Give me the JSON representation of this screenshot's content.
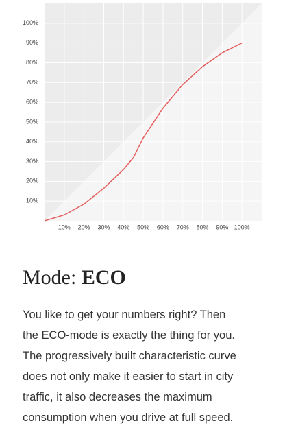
{
  "chart_data": {
    "type": "line",
    "x": [
      0,
      10,
      20,
      30,
      40,
      45,
      50,
      60,
      70,
      80,
      90,
      100
    ],
    "series": [
      {
        "color": "#e35d5d",
        "values": [
          0,
          3,
          8.5,
          16.5,
          26,
          32,
          42,
          57,
          69,
          78,
          85,
          90
        ]
      }
    ],
    "xlim": [
      0,
      110
    ],
    "ylim": [
      0,
      110
    ],
    "xticks": [
      {
        "value": 10,
        "label": "10%"
      },
      {
        "value": 20,
        "label": "20%"
      },
      {
        "value": 30,
        "label": "30%"
      },
      {
        "value": 40,
        "label": "40%"
      },
      {
        "value": 50,
        "label": "50%"
      },
      {
        "value": 60,
        "label": "60%"
      },
      {
        "value": 70,
        "label": "70%"
      },
      {
        "value": 80,
        "label": "80%"
      },
      {
        "value": 90,
        "label": "90%"
      },
      {
        "value": 100,
        "label": "100%"
      }
    ],
    "yticks": [
      {
        "value": 10,
        "label": "10%"
      },
      {
        "value": 20,
        "label": "20%"
      },
      {
        "value": 30,
        "label": "30%"
      },
      {
        "value": 40,
        "label": "40%"
      },
      {
        "value": 50,
        "label": "50%"
      },
      {
        "value": 60,
        "label": "60%"
      },
      {
        "value": 70,
        "label": "70%"
      },
      {
        "value": 80,
        "label": "80%"
      },
      {
        "value": 90,
        "label": "90%"
      },
      {
        "value": 100,
        "label": "100%"
      }
    ],
    "grid": true
  },
  "article": {
    "heading": {
      "prefix": "Mode:",
      "mode": "ECO"
    },
    "lines": [
      "You like to get your numbers right? Then",
      "the ECO-mode is exactly the thing for you.",
      "The progressively built characteristic curve",
      "does not only make it easier to start in city",
      "traffic, it also decreases the maximum",
      "consumption when you drive at full speed."
    ]
  }
}
